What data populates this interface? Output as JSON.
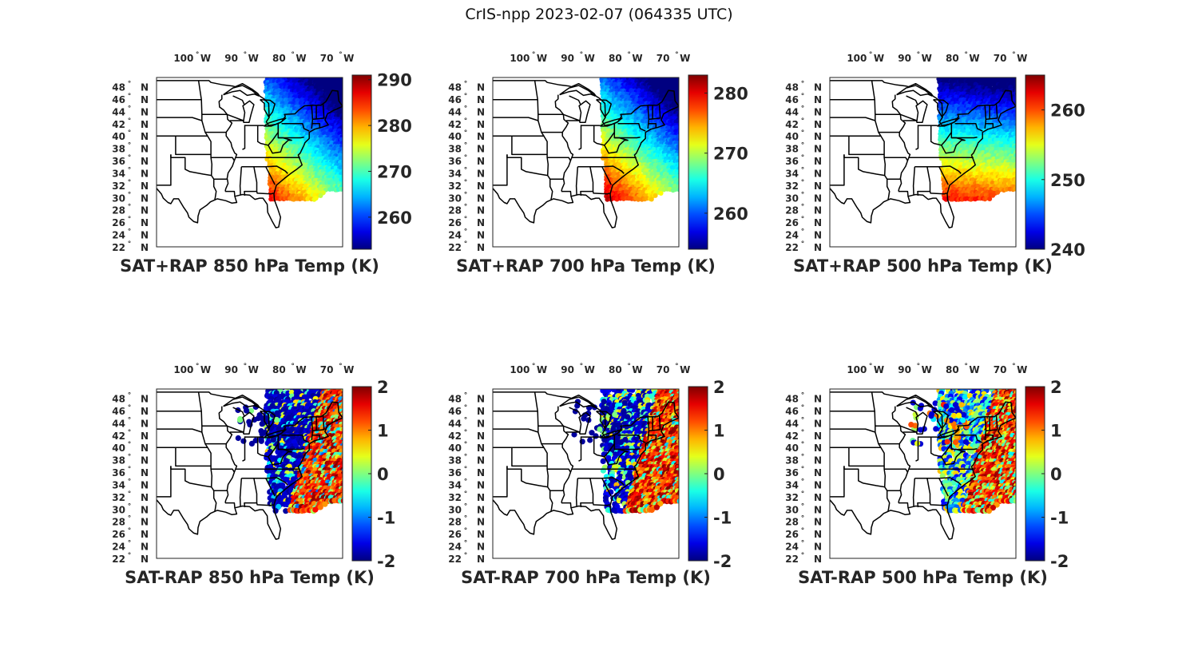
{
  "figure": {
    "title": "CrIS-npp 2023-02-07 (064335 UTC)"
  },
  "map_axes": {
    "lon_ticks": [
      "100",
      "90",
      "80",
      "70"
    ],
    "lon_hemisphere": "W",
    "lat_ticks": [
      "48",
      "46",
      "44",
      "42",
      "40",
      "38",
      "36",
      "34",
      "32",
      "30",
      "28",
      "26",
      "24",
      "22"
    ],
    "lat_hemisphere": "N",
    "degree_symbol": "°",
    "lon_range": [
      -106,
      -67
    ],
    "lat_range": [
      22,
      49.5
    ]
  },
  "colormap": "jet",
  "chart_data": [
    {
      "type": "scatter",
      "panel": "top-left",
      "title": "SAT+RAP 850 hPa Temp (K)",
      "colorbar": {
        "range": [
          253,
          291
        ],
        "ticks": [
          "290",
          "280",
          "270",
          "260"
        ]
      },
      "swath_lon": [
        -83,
        -67
      ],
      "values_range": "warm south-west (285-290 K) to cold north-east (260-265 K)"
    },
    {
      "type": "scatter",
      "panel": "top-center",
      "title": "SAT+RAP 700 hPa Temp (K)",
      "colorbar": {
        "range": [
          254,
          283
        ],
        "ticks": [
          "280",
          "270",
          "260"
        ]
      },
      "swath_lon": [
        -83,
        -67
      ],
      "values_range": "warm south-west (278-282 K) to cold north-east (258-262 K)"
    },
    {
      "type": "scatter",
      "panel": "top-right",
      "title": "SAT+RAP 500 hPa Temp (K)",
      "colorbar": {
        "range": [
          240,
          265
        ],
        "ticks": [
          "260",
          "250",
          "240"
        ]
      },
      "swath_lon": [
        -83,
        -67
      ],
      "values_range": "warm south (258-262 K) to cold north (245-248 K)"
    },
    {
      "type": "scatter",
      "panel": "bottom-left",
      "title": "SAT-RAP 850 hPa Temp (K)",
      "colorbar": {
        "range": [
          -2,
          2
        ],
        "ticks": [
          "2",
          "1",
          "0",
          "-1",
          "-2"
        ]
      },
      "swath_lon": [
        -83,
        -67
      ],
      "values_range": "negative (-2) over land, positive (+2) over ocean"
    },
    {
      "type": "scatter",
      "panel": "bottom-center",
      "title": "SAT-RAP 700 hPa Temp (K)",
      "colorbar": {
        "range": [
          -2,
          2
        ],
        "ticks": [
          "2",
          "1",
          "0",
          "-1",
          "-2"
        ]
      },
      "swath_lon": [
        -83,
        -67
      ],
      "values_range": "mostly positive (+1 to +2) offshore, negative near coast"
    },
    {
      "type": "scatter",
      "panel": "bottom-right",
      "title": "SAT-RAP 500 hPa Temp (K)",
      "colorbar": {
        "range": [
          -2,
          2
        ],
        "ticks": [
          "2",
          "1",
          "0",
          "-1",
          "-2"
        ]
      },
      "swath_lon": [
        -83,
        -67
      ],
      "values_range": "mixed near zero with positive ocean, negative over Great Lakes"
    }
  ]
}
